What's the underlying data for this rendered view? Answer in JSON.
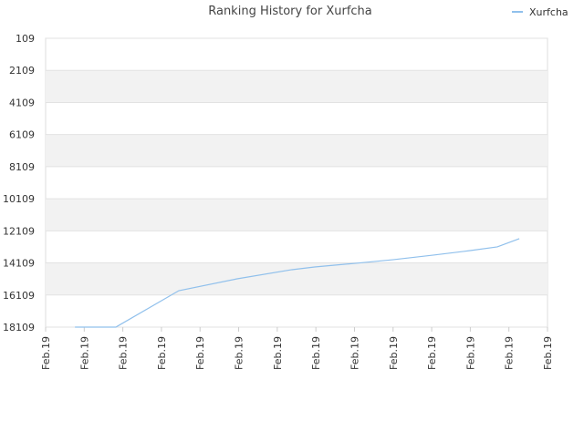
{
  "chart_data": {
    "type": "line",
    "title": "Ranking History for Xurfcha",
    "x": [
      0.76,
      1.82,
      3.45,
      4.96,
      6.38,
      6.97,
      8.04,
      8.99,
      10.05,
      11.0,
      11.7,
      12.27
    ],
    "series": [
      {
        "name": "Xurfcha",
        "color": "#90c0ec",
        "values": [
          18109,
          18109,
          15840,
          15100,
          14530,
          14360,
          14130,
          13910,
          13620,
          13340,
          13110,
          12600
        ]
      }
    ],
    "xlim": [
      0,
      13
    ],
    "xticks": [
      {
        "value": 0,
        "label": "Feb.19"
      },
      {
        "value": 1,
        "label": "Feb.19"
      },
      {
        "value": 2,
        "label": "Feb.19"
      },
      {
        "value": 3,
        "label": "Feb.19"
      },
      {
        "value": 4,
        "label": "Feb.19"
      },
      {
        "value": 5,
        "label": "Feb.19"
      },
      {
        "value": 6,
        "label": "Feb.19"
      },
      {
        "value": 7,
        "label": "Feb.19"
      },
      {
        "value": 8,
        "label": "Feb.19"
      },
      {
        "value": 9,
        "label": "Feb.19"
      },
      {
        "value": 10,
        "label": "Feb.19"
      },
      {
        "value": 11,
        "label": "Feb.19"
      },
      {
        "value": 12,
        "label": "Feb.19"
      },
      {
        "value": 13,
        "label": "Feb.19"
      }
    ],
    "ylim": [
      18109,
      109
    ],
    "yticks": [
      109,
      2109,
      4109,
      6109,
      8109,
      10109,
      12109,
      14109,
      16109,
      18109
    ],
    "grid": true,
    "legend": "top-right"
  }
}
